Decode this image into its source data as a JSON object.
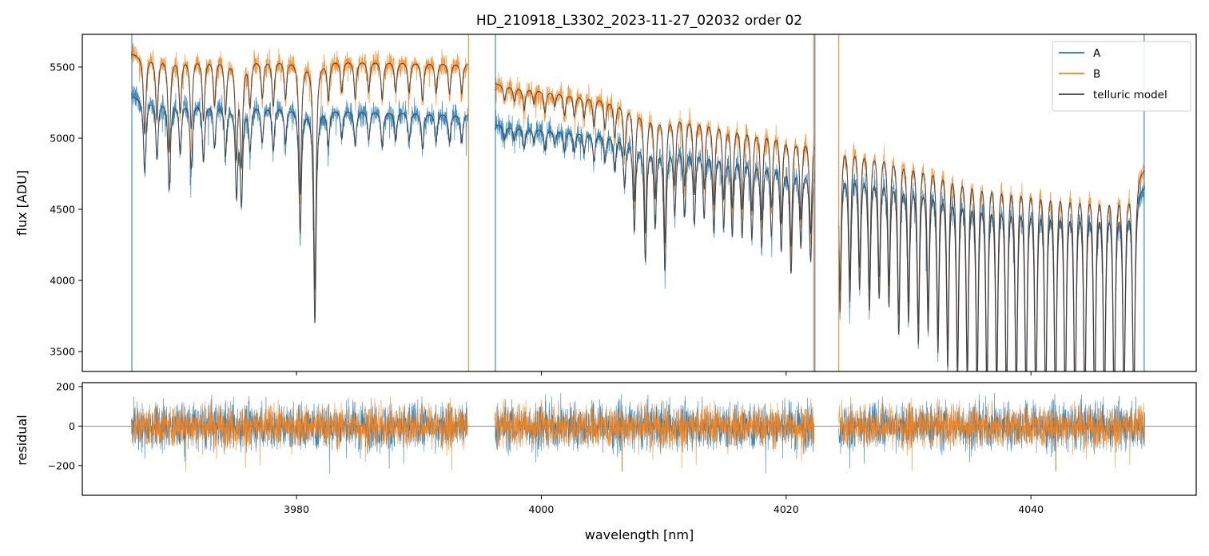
{
  "chart_data": {
    "type": "line",
    "title": "HD_210918_L3302_2023-11-27_02032  order 02",
    "xlabel": "wavelength [nm]",
    "xlim": [
      3962.5,
      4053.5
    ],
    "x_ticks": [
      3980,
      4000,
      4020,
      4040
    ],
    "x_tick_labels": [
      "3980",
      "4000",
      "4020",
      "4040"
    ],
    "legend_position": "top-right",
    "colors": {
      "A": "#1f77b4",
      "B": "#ff7f0e",
      "telluric": "#404040",
      "zero_line": "#808080"
    },
    "segments": [
      [
        3966.5,
        3994.0
      ],
      [
        3996.2,
        4022.3
      ],
      [
        4024.3,
        4049.3
      ]
    ],
    "telluric_lines": [
      {
        "x": 3967.6,
        "depth": 0.1
      },
      {
        "x": 3968.6,
        "depth": 0.08
      },
      {
        "x": 3969.6,
        "depth": 0.12
      },
      {
        "x": 3970.5,
        "depth": 0.07
      },
      {
        "x": 3971.4,
        "depth": 0.09
      },
      {
        "x": 3972.4,
        "depth": 0.08
      },
      {
        "x": 3973.3,
        "depth": 0.06
      },
      {
        "x": 3974.2,
        "depth": 0.07
      },
      {
        "x": 3975.1,
        "depth": 0.12
      },
      {
        "x": 3975.5,
        "depth": 0.13
      },
      {
        "x": 3976.2,
        "depth": 0.06
      },
      {
        "x": 3977.2,
        "depth": 0.05
      },
      {
        "x": 3978.1,
        "depth": 0.06
      },
      {
        "x": 3979.1,
        "depth": 0.05
      },
      {
        "x": 3980.3,
        "depth": 0.17
      },
      {
        "x": 3981.5,
        "depth": 0.29
      },
      {
        "x": 3982.6,
        "depth": 0.05
      },
      {
        "x": 3983.7,
        "depth": 0.04
      },
      {
        "x": 3984.8,
        "depth": 0.05
      },
      {
        "x": 3985.9,
        "depth": 0.04
      },
      {
        "x": 3987.0,
        "depth": 0.05
      },
      {
        "x": 3988.1,
        "depth": 0.04
      },
      {
        "x": 3989.2,
        "depth": 0.04
      },
      {
        "x": 3990.3,
        "depth": 0.05
      },
      {
        "x": 3991.4,
        "depth": 0.04
      },
      {
        "x": 3992.5,
        "depth": 0.04
      },
      {
        "x": 3993.5,
        "depth": 0.04
      },
      {
        "x": 3997.0,
        "depth": 0.02
      },
      {
        "x": 3997.8,
        "depth": 0.02
      },
      {
        "x": 3998.6,
        "depth": 0.03
      },
      {
        "x": 3999.4,
        "depth": 0.02
      },
      {
        "x": 4000.3,
        "depth": 0.03
      },
      {
        "x": 4001.1,
        "depth": 0.02
      },
      {
        "x": 4001.9,
        "depth": 0.03
      },
      {
        "x": 4002.7,
        "depth": 0.03
      },
      {
        "x": 4003.5,
        "depth": 0.03
      },
      {
        "x": 4004.3,
        "depth": 0.04
      },
      {
        "x": 4005.2,
        "depth": 0.04
      },
      {
        "x": 4006.0,
        "depth": 0.05
      },
      {
        "x": 4006.8,
        "depth": 0.07
      },
      {
        "x": 4007.6,
        "depth": 0.13
      },
      {
        "x": 4008.5,
        "depth": 0.17
      },
      {
        "x": 4009.3,
        "depth": 0.12
      },
      {
        "x": 4010.1,
        "depth": 0.18
      },
      {
        "x": 4010.9,
        "depth": 0.1
      },
      {
        "x": 4011.7,
        "depth": 0.1
      },
      {
        "x": 4012.5,
        "depth": 0.11
      },
      {
        "x": 4013.3,
        "depth": 0.1
      },
      {
        "x": 4014.1,
        "depth": 0.12
      },
      {
        "x": 4014.9,
        "depth": 0.11
      },
      {
        "x": 4015.6,
        "depth": 0.12
      },
      {
        "x": 4016.4,
        "depth": 0.12
      },
      {
        "x": 4017.2,
        "depth": 0.12
      },
      {
        "x": 4018.0,
        "depth": 0.13
      },
      {
        "x": 4018.8,
        "depth": 0.11
      },
      {
        "x": 4019.6,
        "depth": 0.13
      },
      {
        "x": 4020.4,
        "depth": 0.16
      },
      {
        "x": 4021.2,
        "depth": 0.12
      },
      {
        "x": 4022.0,
        "depth": 0.14
      },
      {
        "x": 4024.4,
        "depth": 0.22
      },
      {
        "x": 4025.2,
        "depth": 0.2
      },
      {
        "x": 4026.0,
        "depth": 0.18
      },
      {
        "x": 4026.8,
        "depth": 0.21
      },
      {
        "x": 4027.6,
        "depth": 0.19
      },
      {
        "x": 4028.4,
        "depth": 0.2
      },
      {
        "x": 4029.2,
        "depth": 0.24
      },
      {
        "x": 4030.0,
        "depth": 0.22
      },
      {
        "x": 4030.8,
        "depth": 0.25
      },
      {
        "x": 4031.6,
        "depth": 0.23
      },
      {
        "x": 4032.4,
        "depth": 0.26
      },
      {
        "x": 4033.2,
        "depth": 0.28
      },
      {
        "x": 4034.0,
        "depth": 0.3
      },
      {
        "x": 4034.8,
        "depth": 0.3
      },
      {
        "x": 4035.6,
        "depth": 0.32
      },
      {
        "x": 4036.4,
        "depth": 0.32
      },
      {
        "x": 4037.2,
        "depth": 0.32
      },
      {
        "x": 4038.0,
        "depth": 0.33
      },
      {
        "x": 4038.8,
        "depth": 0.33
      },
      {
        "x": 4039.6,
        "depth": 0.33
      },
      {
        "x": 4040.4,
        "depth": 0.34
      },
      {
        "x": 4041.2,
        "depth": 0.34
      },
      {
        "x": 4042.0,
        "depth": 0.34
      },
      {
        "x": 4042.8,
        "depth": 0.34
      },
      {
        "x": 4043.6,
        "depth": 0.34
      },
      {
        "x": 4044.4,
        "depth": 0.34
      },
      {
        "x": 4045.2,
        "depth": 0.34
      },
      {
        "x": 4046.0,
        "depth": 0.34
      },
      {
        "x": 4046.8,
        "depth": 0.34
      },
      {
        "x": 4047.6,
        "depth": 0.33
      },
      {
        "x": 4048.4,
        "depth": 0.34
      }
    ],
    "panels": [
      {
        "name": "flux",
        "ylabel": "flux [ADU]",
        "ylim": [
          3360,
          5730
        ],
        "y_ticks": [
          3500,
          4000,
          4500,
          5000,
          5500
        ],
        "y_tick_labels": [
          "3500",
          "4000",
          "4500",
          "5000",
          "5500"
        ],
        "series": [
          {
            "name": "A",
            "continuum": {
              "x": [
                3966.5,
                3975,
                3985,
                3994,
                3996.2,
                4005,
                4015,
                4022.3,
                4024.3,
                4035,
                4049.3
              ],
              "y": [
                5300,
                5260,
                5210,
                5180,
                5100,
                5050,
                4950,
                4830,
                4880,
                4780,
                4700
              ]
            },
            "noise_amp": 100
          },
          {
            "name": "B",
            "continuum": {
              "x": [
                3966.5,
                3975,
                3985,
                3994,
                3996.2,
                4005,
                4015,
                4022.3,
                4024.3,
                4035,
                4049.3
              ],
              "y": [
                5600,
                5580,
                5560,
                5540,
                5390,
                5300,
                5180,
                5060,
                5080,
                4950,
                4820
              ]
            },
            "noise_amp": 100
          }
        ],
        "telluric_label": "telluric model"
      },
      {
        "name": "residual",
        "ylabel": "residual",
        "ylim": [
          -350,
          220
        ],
        "y_ticks": [
          -200,
          0,
          200
        ],
        "y_tick_labels": [
          "−200",
          "0",
          "200"
        ],
        "series": [
          {
            "name": "A",
            "noise_amp": 85
          },
          {
            "name": "B",
            "noise_amp": 75
          }
        ]
      }
    ]
  }
}
